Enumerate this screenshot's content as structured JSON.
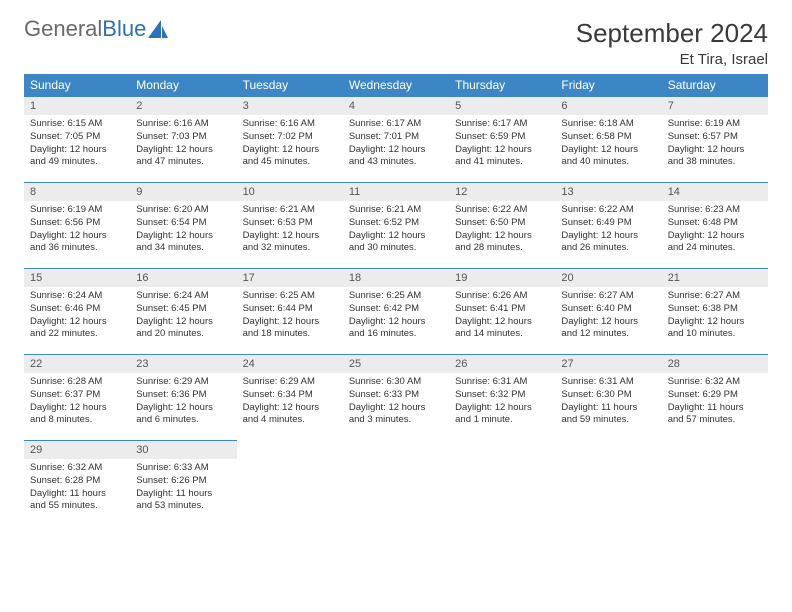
{
  "brand": {
    "part1": "General",
    "part2": "Blue"
  },
  "title": "September 2024",
  "location": "Et Tira, Israel",
  "colors": {
    "header_bg": "#3d86c6",
    "header_text": "#ffffff",
    "daynum_bg": "#ececec",
    "border": "#3d86c6",
    "body_text": "#333333",
    "brand_gray": "#6a6a6a",
    "brand_blue": "#2b72b9"
  },
  "weekdays": [
    "Sunday",
    "Monday",
    "Tuesday",
    "Wednesday",
    "Thursday",
    "Friday",
    "Saturday"
  ],
  "layout": {
    "columns": 7,
    "rows": 5,
    "first_weekday_index": 0
  },
  "days": [
    {
      "n": 1,
      "sunrise": "6:15 AM",
      "sunset": "7:05 PM",
      "daylight": "12 hours and 49 minutes."
    },
    {
      "n": 2,
      "sunrise": "6:16 AM",
      "sunset": "7:03 PM",
      "daylight": "12 hours and 47 minutes."
    },
    {
      "n": 3,
      "sunrise": "6:16 AM",
      "sunset": "7:02 PM",
      "daylight": "12 hours and 45 minutes."
    },
    {
      "n": 4,
      "sunrise": "6:17 AM",
      "sunset": "7:01 PM",
      "daylight": "12 hours and 43 minutes."
    },
    {
      "n": 5,
      "sunrise": "6:17 AM",
      "sunset": "6:59 PM",
      "daylight": "12 hours and 41 minutes."
    },
    {
      "n": 6,
      "sunrise": "6:18 AM",
      "sunset": "6:58 PM",
      "daylight": "12 hours and 40 minutes."
    },
    {
      "n": 7,
      "sunrise": "6:19 AM",
      "sunset": "6:57 PM",
      "daylight": "12 hours and 38 minutes."
    },
    {
      "n": 8,
      "sunrise": "6:19 AM",
      "sunset": "6:56 PM",
      "daylight": "12 hours and 36 minutes."
    },
    {
      "n": 9,
      "sunrise": "6:20 AM",
      "sunset": "6:54 PM",
      "daylight": "12 hours and 34 minutes."
    },
    {
      "n": 10,
      "sunrise": "6:21 AM",
      "sunset": "6:53 PM",
      "daylight": "12 hours and 32 minutes."
    },
    {
      "n": 11,
      "sunrise": "6:21 AM",
      "sunset": "6:52 PM",
      "daylight": "12 hours and 30 minutes."
    },
    {
      "n": 12,
      "sunrise": "6:22 AM",
      "sunset": "6:50 PM",
      "daylight": "12 hours and 28 minutes."
    },
    {
      "n": 13,
      "sunrise": "6:22 AM",
      "sunset": "6:49 PM",
      "daylight": "12 hours and 26 minutes."
    },
    {
      "n": 14,
      "sunrise": "6:23 AM",
      "sunset": "6:48 PM",
      "daylight": "12 hours and 24 minutes."
    },
    {
      "n": 15,
      "sunrise": "6:24 AM",
      "sunset": "6:46 PM",
      "daylight": "12 hours and 22 minutes."
    },
    {
      "n": 16,
      "sunrise": "6:24 AM",
      "sunset": "6:45 PM",
      "daylight": "12 hours and 20 minutes."
    },
    {
      "n": 17,
      "sunrise": "6:25 AM",
      "sunset": "6:44 PM",
      "daylight": "12 hours and 18 minutes."
    },
    {
      "n": 18,
      "sunrise": "6:25 AM",
      "sunset": "6:42 PM",
      "daylight": "12 hours and 16 minutes."
    },
    {
      "n": 19,
      "sunrise": "6:26 AM",
      "sunset": "6:41 PM",
      "daylight": "12 hours and 14 minutes."
    },
    {
      "n": 20,
      "sunrise": "6:27 AM",
      "sunset": "6:40 PM",
      "daylight": "12 hours and 12 minutes."
    },
    {
      "n": 21,
      "sunrise": "6:27 AM",
      "sunset": "6:38 PM",
      "daylight": "12 hours and 10 minutes."
    },
    {
      "n": 22,
      "sunrise": "6:28 AM",
      "sunset": "6:37 PM",
      "daylight": "12 hours and 8 minutes."
    },
    {
      "n": 23,
      "sunrise": "6:29 AM",
      "sunset": "6:36 PM",
      "daylight": "12 hours and 6 minutes."
    },
    {
      "n": 24,
      "sunrise": "6:29 AM",
      "sunset": "6:34 PM",
      "daylight": "12 hours and 4 minutes."
    },
    {
      "n": 25,
      "sunrise": "6:30 AM",
      "sunset": "6:33 PM",
      "daylight": "12 hours and 3 minutes."
    },
    {
      "n": 26,
      "sunrise": "6:31 AM",
      "sunset": "6:32 PM",
      "daylight": "12 hours and 1 minute."
    },
    {
      "n": 27,
      "sunrise": "6:31 AM",
      "sunset": "6:30 PM",
      "daylight": "11 hours and 59 minutes."
    },
    {
      "n": 28,
      "sunrise": "6:32 AM",
      "sunset": "6:29 PM",
      "daylight": "11 hours and 57 minutes."
    },
    {
      "n": 29,
      "sunrise": "6:32 AM",
      "sunset": "6:28 PM",
      "daylight": "11 hours and 55 minutes."
    },
    {
      "n": 30,
      "sunrise": "6:33 AM",
      "sunset": "6:26 PM",
      "daylight": "11 hours and 53 minutes."
    }
  ],
  "labels": {
    "sunrise": "Sunrise:",
    "sunset": "Sunset:",
    "daylight": "Daylight:"
  }
}
